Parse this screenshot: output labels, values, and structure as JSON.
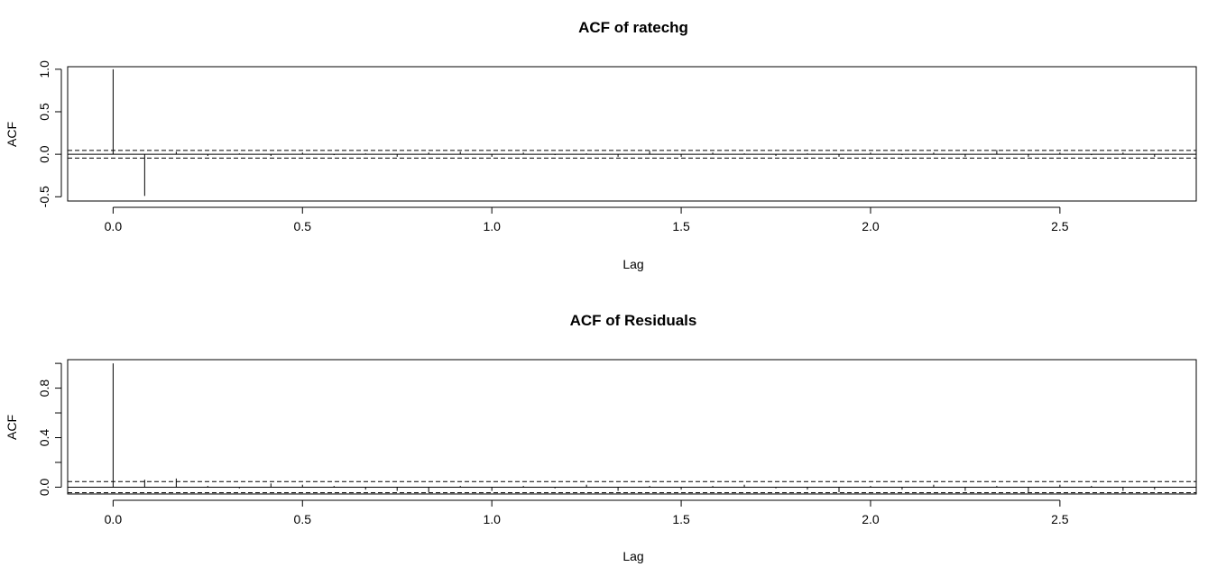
{
  "chart_data": [
    {
      "type": "bar",
      "title": "ACF of ratechg",
      "xlabel": "Lag",
      "ylabel": "ACF",
      "xlim": [
        -0.12,
        2.86
      ],
      "ylim": [
        -0.55,
        1.03
      ],
      "x_ticks": [
        0.0,
        0.5,
        1.0,
        1.5,
        2.0,
        2.5
      ],
      "x_tick_labels": [
        "0.0",
        "0.5",
        "1.0",
        "1.5",
        "2.0",
        "2.5"
      ],
      "y_ticks": [
        -0.5,
        0.0,
        0.5,
        1.0
      ],
      "y_tick_labels": [
        "-0.5",
        "0.0",
        "0.5",
        "1.0"
      ],
      "conf_bound": 0.045,
      "lags": [
        0.0,
        0.0833,
        0.1667,
        0.25,
        0.3333,
        0.4167,
        0.5,
        0.5833,
        0.6667,
        0.75,
        0.8333,
        0.9167,
        1.0,
        1.0833,
        1.1667,
        1.25,
        1.3333,
        1.4167,
        1.5,
        1.5833,
        1.6667,
        1.75,
        1.8333,
        1.9167,
        2.0,
        2.0833,
        2.1667,
        2.25,
        2.3333,
        2.4167,
        2.5,
        2.5833,
        2.6667,
        2.75
      ],
      "values": [
        1.0,
        -0.49,
        0.03,
        -0.02,
        0.01,
        -0.02,
        0.02,
        -0.01,
        0.01,
        -0.03,
        0.02,
        0.03,
        -0.03,
        0.02,
        -0.01,
        0.01,
        -0.03,
        0.04,
        -0.03,
        0.02,
        0.01,
        -0.02,
        0.01,
        -0.03,
        0.02,
        -0.01,
        0.02,
        -0.03,
        0.05,
        -0.03,
        0.02,
        -0.01,
        0.02,
        -0.03
      ]
    },
    {
      "type": "bar",
      "title": "ACF of Residuals",
      "xlabel": "Lag",
      "ylabel": "ACF",
      "xlim": [
        -0.12,
        2.86
      ],
      "ylim": [
        -0.055,
        1.03
      ],
      "x_ticks": [
        0.0,
        0.5,
        1.0,
        1.5,
        2.0,
        2.5
      ],
      "x_tick_labels": [
        "0.0",
        "0.5",
        "1.0",
        "1.5",
        "2.0",
        "2.5"
      ],
      "y_ticks": [
        0.0,
        0.2,
        0.4,
        0.6,
        0.8,
        1.0
      ],
      "y_tick_labels": [
        "0.0",
        "",
        "0.4",
        "",
        "0.8",
        ""
      ],
      "conf_bound": 0.045,
      "lags": [
        0.0,
        0.0833,
        0.1667,
        0.25,
        0.3333,
        0.4167,
        0.5,
        0.5833,
        0.6667,
        0.75,
        0.8333,
        0.9167,
        1.0,
        1.0833,
        1.1667,
        1.25,
        1.3333,
        1.4167,
        1.5,
        1.5833,
        1.6667,
        1.75,
        1.8333,
        1.9167,
        2.0,
        2.0833,
        2.1667,
        2.25,
        2.3333,
        2.4167,
        2.5,
        2.5833,
        2.6667,
        2.75
      ],
      "values": [
        1.0,
        0.06,
        0.07,
        0.01,
        -0.01,
        0.03,
        0.02,
        0.01,
        -0.02,
        -0.03,
        -0.04,
        0.01,
        -0.03,
        0.01,
        -0.01,
        0.02,
        -0.03,
        0.01,
        -0.02,
        0.01,
        0.02,
        -0.01,
        -0.02,
        -0.04,
        0.01,
        -0.02,
        0.02,
        -0.03,
        0.01,
        -0.04,
        0.02,
        0.01,
        -0.03,
        -0.02
      ]
    }
  ]
}
